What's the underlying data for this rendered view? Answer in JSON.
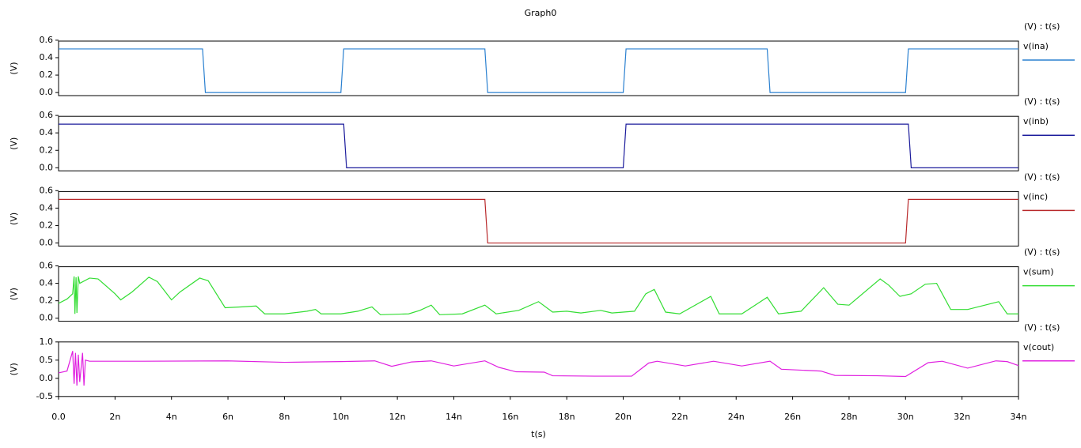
{
  "title": "Graph0",
  "chart_data": [
    {
      "type": "line",
      "ylabel": "(V)",
      "legend_header": "(V) : t(s)",
      "xlim": [
        0,
        3.4e-08
      ],
      "ylim": [
        -0.035,
        0.59
      ],
      "yticks": [
        0.6,
        0.4,
        0.2,
        {
          "value": 0,
          "label": "0.0"
        }
      ],
      "x": [
        0,
        5.1e-09,
        5.2e-09,
        1e-08,
        1.01e-08,
        1.51e-08,
        1.52e-08,
        2e-08,
        2.01e-08,
        2.51e-08,
        2.52e-08,
        3e-08,
        3.01e-08,
        3.4e-08
      ],
      "series": [
        {
          "name": "v(ina)",
          "color": "#2a80d0",
          "values": [
            0.5,
            0.5,
            0,
            0,
            0.5,
            0.5,
            0,
            0,
            0.5,
            0.5,
            0,
            0,
            0.5,
            0.5
          ]
        }
      ]
    },
    {
      "type": "line",
      "ylabel": "(V)",
      "legend_header": "(V) : t(s)",
      "xlim": [
        0,
        3.4e-08
      ],
      "ylim": [
        -0.035,
        0.59
      ],
      "yticks": [
        0.6,
        0.4,
        0.2,
        {
          "value": 0,
          "label": "0.0"
        }
      ],
      "x": [
        0,
        1.01e-08,
        1.02e-08,
        2e-08,
        2.01e-08,
        3.01e-08,
        3.02e-08,
        3.4e-08
      ],
      "series": [
        {
          "name": "v(inb)",
          "color": "#1c1c9c",
          "values": [
            0.5,
            0.5,
            0,
            0,
            0.5,
            0.5,
            0,
            0
          ]
        }
      ]
    },
    {
      "type": "line",
      "ylabel": "(V)",
      "legend_header": "(V) : t(s)",
      "xlim": [
        0,
        3.4e-08
      ],
      "ylim": [
        -0.035,
        0.59
      ],
      "yticks": [
        0.6,
        0.4,
        0.2,
        {
          "value": 0,
          "label": "0.0"
        }
      ],
      "x": [
        0,
        1.51e-08,
        1.52e-08,
        3e-08,
        3.01e-08,
        3.4e-08
      ],
      "series": [
        {
          "name": "v(inc)",
          "color": "#b8282a",
          "values": [
            0.5,
            0.5,
            0,
            0,
            0.5,
            0.5
          ]
        }
      ]
    },
    {
      "type": "line",
      "ylabel": "(V)",
      "legend_header": "(V) : t(s)",
      "xlim": [
        0,
        3.4e-08
      ],
      "ylim": [
        -0.035,
        0.59
      ],
      "yticks": [
        0.6,
        0.4,
        0.2,
        {
          "value": 0,
          "label": "0.0"
        }
      ],
      "x": [
        0,
        3e-10,
        5e-10,
        5.5e-10,
        5.8e-10,
        6.2e-10,
        6.5e-10,
        7e-10,
        7.5e-10,
        1.1e-09,
        1.4e-09,
        2e-09,
        2.2e-09,
        2.6e-09,
        3.2e-09,
        3.5e-09,
        4e-09,
        4.3e-09,
        5e-09,
        5.3e-09,
        5.9e-09,
        6.5e-09,
        7e-09,
        7.3e-09,
        8e-09,
        8.8e-09,
        9.1e-09,
        9.3e-09,
        1e-08,
        1.06e-08,
        1.11e-08,
        1.14e-08,
        1.24e-08,
        1.28e-08,
        1.32e-08,
        1.35e-08,
        1.43e-08,
        1.51e-08,
        1.55e-08,
        1.63e-08,
        1.7e-08,
        1.75e-08,
        1.8e-08,
        1.85e-08,
        1.92e-08,
        1.96e-08,
        2.04e-08,
        2.08e-08,
        2.11e-08,
        2.15e-08,
        2.2e-08,
        2.31e-08,
        2.34e-08,
        2.42e-08,
        2.51e-08,
        2.55e-08,
        2.63e-08,
        2.71e-08,
        2.76e-08,
        2.8e-08,
        2.91e-08,
        2.94e-08,
        2.98e-08,
        3.02e-08,
        3.07e-08,
        3.11e-08,
        3.16e-08,
        3.22e-08,
        3.33e-08,
        3.36e-08,
        3.4e-08
      ],
      "series": [
        {
          "name": "v(sum)",
          "color": "#33dd33",
          "values": [
            0.17,
            0.22,
            0.28,
            0.48,
            0.05,
            0.47,
            0.06,
            0.48,
            0.4,
            0.46,
            0.45,
            0.28,
            0.21,
            0.3,
            0.47,
            0.42,
            0.21,
            0.3,
            0.46,
            0.43,
            0.12,
            0.13,
            0.14,
            0.05,
            0.05,
            0.08,
            0.1,
            0.05,
            0.05,
            0.08,
            0.13,
            0.04,
            0.05,
            0.09,
            0.15,
            0.04,
            0.05,
            0.15,
            0.05,
            0.09,
            0.19,
            0.07,
            0.08,
            0.06,
            0.09,
            0.06,
            0.08,
            0.28,
            0.33,
            0.07,
            0.05,
            0.25,
            0.05,
            0.05,
            0.24,
            0.05,
            0.08,
            0.35,
            0.16,
            0.15,
            0.45,
            0.38,
            0.25,
            0.28,
            0.39,
            0.4,
            0.1,
            0.1,
            0.19,
            0.05,
            0.05
          ]
        }
      ]
    },
    {
      "type": "line",
      "ylabel": "(V)",
      "legend_header": "(V) : t(s)",
      "xlim": [
        0,
        3.4e-08
      ],
      "ylim": [
        -0.5,
        1.0
      ],
      "xlabel": "t(s)",
      "yticks": [
        {
          "value": 1,
          "label": "1.0"
        },
        0.5,
        {
          "value": 0,
          "label": "0.0"
        },
        -0.5
      ],
      "xticks": [
        {
          "value": 0,
          "label": "0.0"
        },
        {
          "value": 2e-09,
          "label": "2n"
        },
        {
          "value": 4e-09,
          "label": "4n"
        },
        {
          "value": 6e-09,
          "label": "6n"
        },
        {
          "value": 8e-09,
          "label": "8n"
        },
        {
          "value": 1e-08,
          "label": "10n"
        },
        {
          "value": 1.2e-08,
          "label": "12n"
        },
        {
          "value": 1.4e-08,
          "label": "14n"
        },
        {
          "value": 1.6e-08,
          "label": "16n"
        },
        {
          "value": 1.8e-08,
          "label": "18n"
        },
        {
          "value": 2e-08,
          "label": "20n"
        },
        {
          "value": 2.2e-08,
          "label": "22n"
        },
        {
          "value": 2.4e-08,
          "label": "24n"
        },
        {
          "value": 2.6e-08,
          "label": "26n"
        },
        {
          "value": 2.8e-08,
          "label": "28n"
        },
        {
          "value": 3e-08,
          "label": "30n"
        },
        {
          "value": 3.2e-08,
          "label": "32n"
        },
        {
          "value": 3.4e-08,
          "label": "34n"
        }
      ],
      "x": [
        0,
        3e-10,
        5e-10,
        5.5e-10,
        6e-10,
        6.5e-10,
        7e-10,
        7.5e-10,
        8.5e-10,
        9e-10,
        9.5e-10,
        1.1e-09,
        3e-09,
        6e-09,
        8e-09,
        1e-08,
        1.12e-08,
        1.18e-08,
        1.25e-08,
        1.32e-08,
        1.4e-08,
        1.51e-08,
        1.56e-08,
        1.62e-08,
        1.72e-08,
        1.75e-08,
        1.9e-08,
        2.03e-08,
        2.09e-08,
        2.12e-08,
        2.22e-08,
        2.32e-08,
        2.42e-08,
        2.52e-08,
        2.56e-08,
        2.7e-08,
        2.75e-08,
        2.9e-08,
        3e-08,
        3.08e-08,
        3.13e-08,
        3.22e-08,
        3.32e-08,
        3.36e-08,
        3.4e-08
      ],
      "series": [
        {
          "name": "v(cout)",
          "color": "#e020e0",
          "values": [
            0.15,
            0.2,
            0.75,
            -0.15,
            0.7,
            -0.2,
            0.65,
            -0.1,
            0.7,
            -0.2,
            0.5,
            0.47,
            0.47,
            0.48,
            0.44,
            0.46,
            0.48,
            0.33,
            0.45,
            0.48,
            0.34,
            0.48,
            0.3,
            0.18,
            0.17,
            0.07,
            0.06,
            0.06,
            0.42,
            0.47,
            0.34,
            0.47,
            0.34,
            0.47,
            0.25,
            0.2,
            0.08,
            0.07,
            0.05,
            0.43,
            0.47,
            0.28,
            0.48,
            0.46,
            0.35
          ]
        }
      ]
    }
  ]
}
